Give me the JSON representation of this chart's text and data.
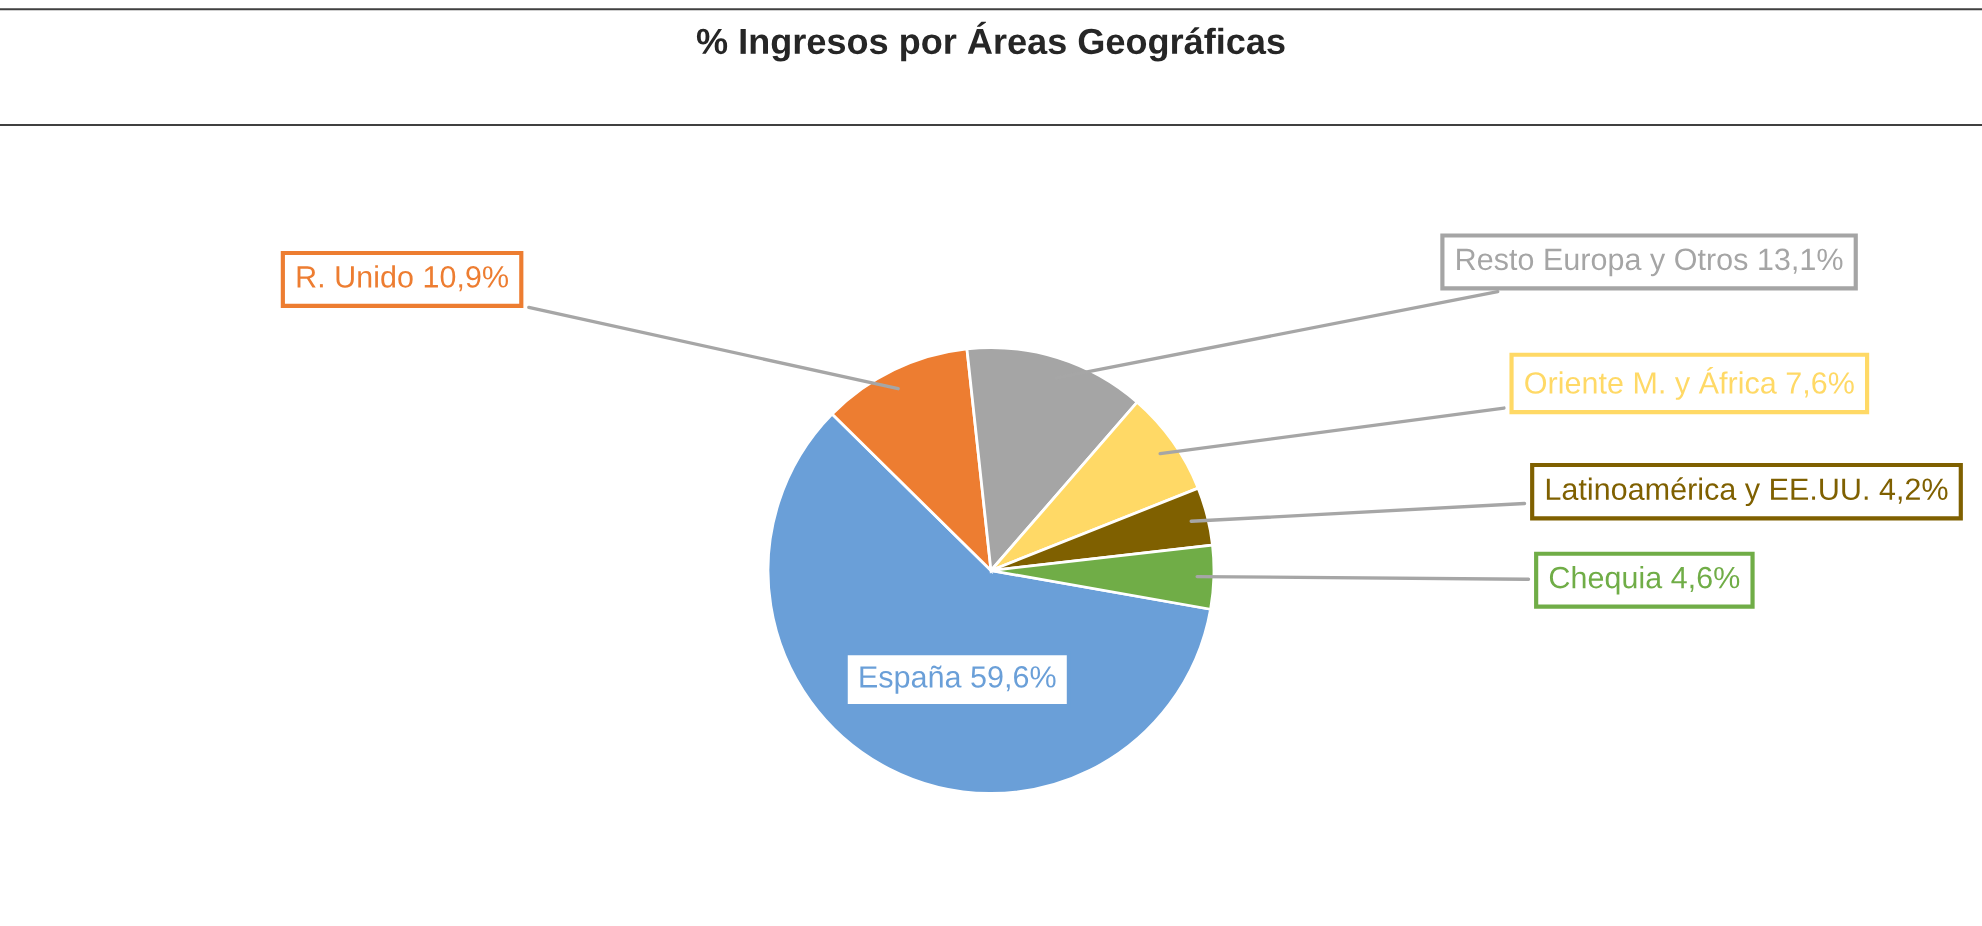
{
  "chart_data": {
    "type": "pie",
    "title": "% Ingresos por Áreas Geográficas",
    "categories": [
      "España",
      "R. Unido",
      "Resto Europa y Otros",
      "Oriente M. y África",
      "Latinoamérica y EE.UU.",
      "Chequia"
    ],
    "values": [
      59.6,
      10.9,
      13.1,
      7.6,
      4.2,
      4.6
    ],
    "colors": [
      "#6a9fd8",
      "#ed7d31",
      "#a5a5a5",
      "#ffd966",
      "#7f6000",
      "#70ad47"
    ],
    "value_labels": [
      "59,6%",
      "10,9%",
      "13,1%",
      "7,6%",
      "4,2%",
      "4,6%"
    ]
  }
}
